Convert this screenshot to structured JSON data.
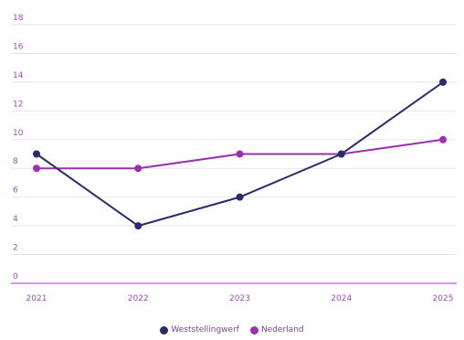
{
  "chart_data": {
    "type": "line",
    "x": [
      "2021",
      "2022",
      "2023",
      "2024",
      "2025"
    ],
    "ylim": [
      0,
      18
    ],
    "yticks": [
      0,
      2,
      4,
      6,
      8,
      10,
      12,
      14,
      16,
      18
    ],
    "grid": true,
    "legend_position": "bottom",
    "series": [
      {
        "name": "Weststellingwerf",
        "color": "#272d6c",
        "values": [
          9,
          4,
          6,
          9,
          14
        ]
      },
      {
        "name": "Nederland",
        "color": "#9b2fae",
        "values": [
          8,
          8,
          9,
          9,
          10
        ]
      }
    ],
    "axis_color": "#b65fc7",
    "tick_color": "#a24bb5"
  }
}
